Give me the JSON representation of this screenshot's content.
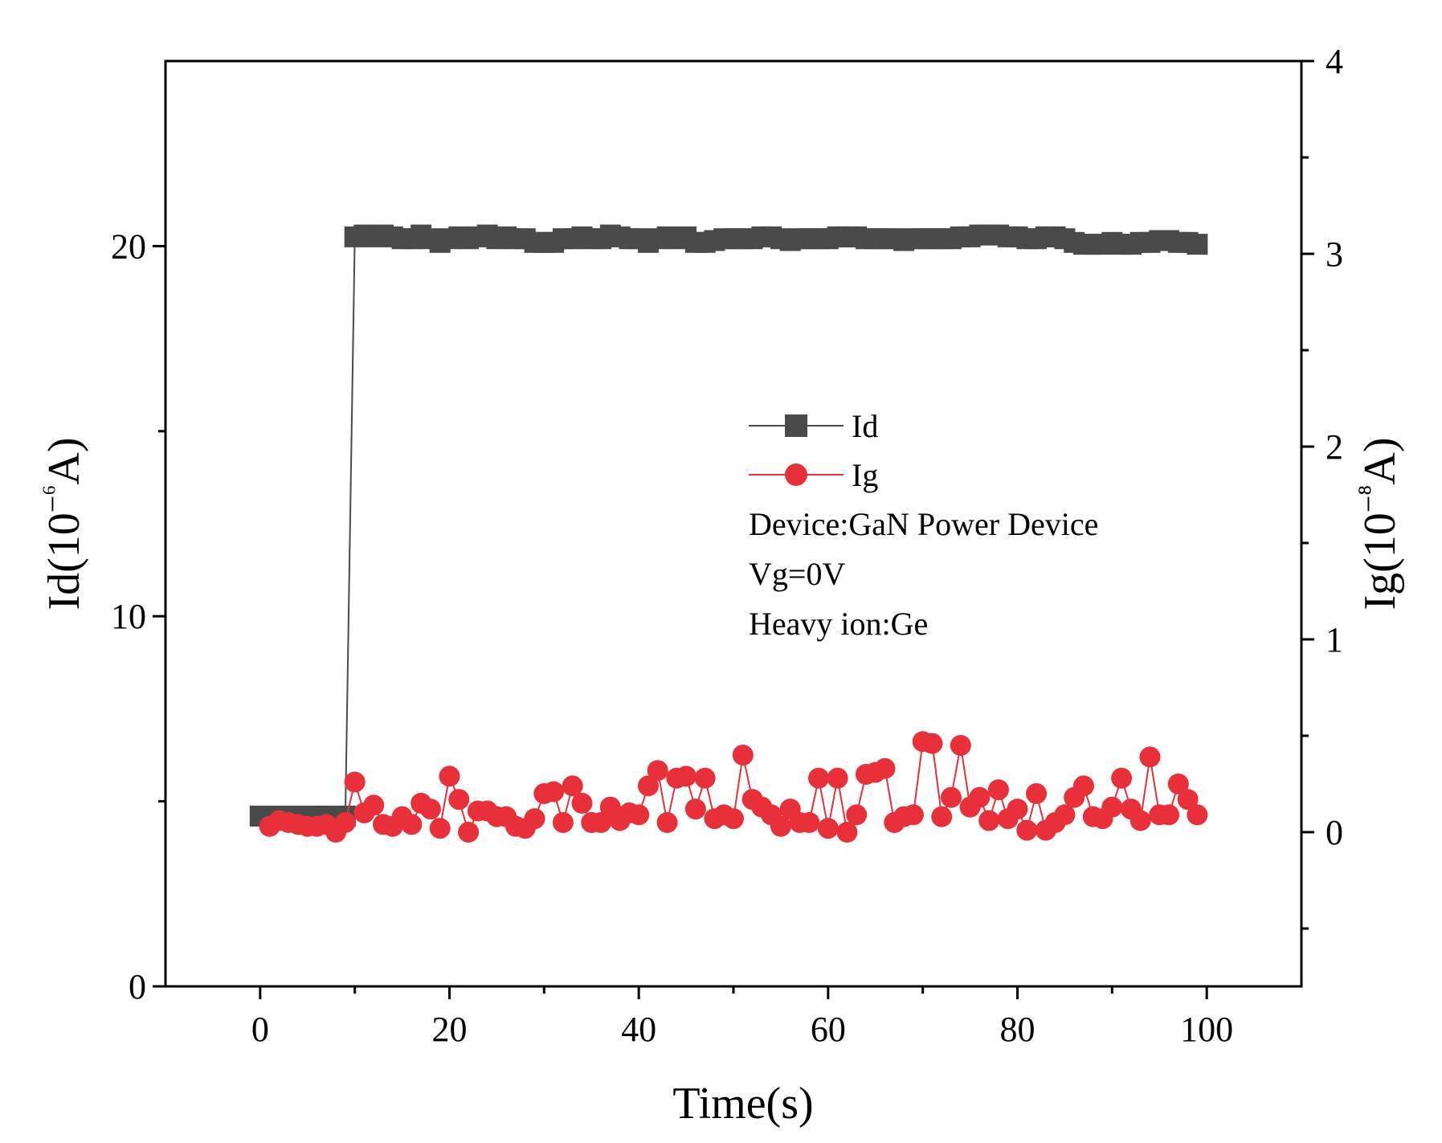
{
  "chart_data": {
    "type": "line",
    "title": "",
    "xlabel": "Time(s)",
    "ylabel_left": "Id(10⁻⁶A)",
    "ylabel_left_parts": {
      "base": "Id(10",
      "sup": "−⁶",
      "tail": "A)"
    },
    "ylabel_right": "Ig(10⁻⁸A)",
    "ylabel_right_parts": {
      "base": "Ig(10",
      "sup": "−⁸",
      "tail": "A)"
    },
    "xlim": [
      -10,
      110
    ],
    "ylim_left": [
      0,
      25
    ],
    "ylim_right": [
      -0.8,
      4
    ],
    "xticks": [
      0,
      20,
      40,
      60,
      80,
      100
    ],
    "yticks_left": [
      0,
      10,
      20
    ],
    "yticks_right": [
      0,
      1,
      2,
      3,
      4
    ],
    "grid": false,
    "legend_position": "center-right",
    "annotations": [
      "Device:GaN Power Device",
      "Vg=0V",
      "Heavy ion:Ge"
    ],
    "series": [
      {
        "name": "Id",
        "axis": "left",
        "color": "#4a4a4a",
        "marker": "square",
        "x": [
          0,
          1,
          2,
          3,
          4,
          5,
          6,
          7,
          8,
          9,
          10,
          11,
          12,
          13,
          14,
          15,
          16,
          17,
          18,
          19,
          20,
          21,
          22,
          23,
          24,
          25,
          26,
          27,
          28,
          29,
          30,
          31,
          32,
          33,
          34,
          35,
          36,
          37,
          38,
          39,
          40,
          41,
          42,
          43,
          44,
          45,
          46,
          47,
          48,
          49,
          50,
          51,
          52,
          53,
          54,
          55,
          56,
          57,
          58,
          59,
          60,
          61,
          62,
          63,
          64,
          65,
          66,
          67,
          68,
          69,
          70,
          71,
          72,
          73,
          74,
          75,
          76,
          77,
          78,
          79,
          80,
          81,
          82,
          83,
          84,
          85,
          86,
          87,
          88,
          89,
          90,
          91,
          92,
          93,
          94,
          95,
          96,
          97,
          98,
          99
        ],
        "values": [
          4.6,
          4.6,
          4.6,
          4.6,
          4.6,
          4.6,
          4.6,
          4.6,
          4.6,
          4.6,
          20.25,
          20.3,
          20.25,
          20.3,
          20.25,
          20.2,
          20.2,
          20.3,
          20.2,
          20.1,
          20.2,
          20.25,
          20.2,
          20.25,
          20.3,
          20.2,
          20.25,
          20.2,
          20.2,
          20.1,
          20.1,
          20.1,
          20.2,
          20.2,
          20.25,
          20.2,
          20.2,
          20.3,
          20.25,
          20.2,
          20.2,
          20.1,
          20.2,
          20.25,
          20.2,
          20.25,
          20.1,
          20.1,
          20.15,
          20.2,
          20.2,
          20.2,
          20.2,
          20.25,
          20.25,
          20.2,
          20.15,
          20.2,
          20.2,
          20.2,
          20.2,
          20.25,
          20.25,
          20.25,
          20.2,
          20.2,
          20.2,
          20.2,
          20.15,
          20.2,
          20.2,
          20.2,
          20.2,
          20.2,
          20.25,
          20.25,
          20.3,
          20.3,
          20.3,
          20.25,
          20.25,
          20.2,
          20.2,
          20.25,
          20.25,
          20.2,
          20.1,
          20.05,
          20.05,
          20.05,
          20.1,
          20.05,
          20.05,
          20.1,
          20.1,
          20.15,
          20.15,
          20.1,
          20.1,
          20.05
        ]
      },
      {
        "name": "Ig",
        "axis": "right",
        "color": "#e8303a",
        "marker": "circle",
        "x": [
          1,
          2,
          3,
          4,
          5,
          6,
          7,
          8,
          9,
          10,
          11,
          12,
          13,
          14,
          15,
          16,
          17,
          18,
          19,
          20,
          21,
          22,
          23,
          24,
          25,
          26,
          27,
          28,
          29,
          30,
          31,
          32,
          33,
          34,
          35,
          36,
          37,
          38,
          39,
          40,
          41,
          42,
          43,
          44,
          45,
          46,
          47,
          48,
          49,
          50,
          51,
          52,
          53,
          54,
          55,
          56,
          57,
          58,
          59,
          60,
          61,
          62,
          63,
          64,
          65,
          66,
          67,
          68,
          69,
          70,
          71,
          72,
          73,
          74,
          75,
          76,
          77,
          78,
          79,
          80,
          81,
          82,
          83,
          84,
          85,
          86,
          87,
          88,
          89,
          90,
          91,
          92,
          93,
          94,
          95,
          96,
          97,
          98,
          99
        ],
        "values": [
          0.03,
          0.06,
          0.05,
          0.04,
          0.03,
          0.03,
          0.04,
          0.0,
          0.05,
          0.26,
          0.1,
          0.14,
          0.04,
          0.03,
          0.08,
          0.04,
          0.15,
          0.12,
          0.02,
          0.29,
          0.17,
          0.0,
          0.11,
          0.11,
          0.08,
          0.08,
          0.03,
          0.02,
          0.07,
          0.2,
          0.21,
          0.05,
          0.24,
          0.15,
          0.05,
          0.05,
          0.13,
          0.06,
          0.1,
          0.09,
          0.24,
          0.32,
          0.05,
          0.28,
          0.29,
          0.12,
          0.28,
          0.07,
          0.09,
          0.07,
          0.4,
          0.17,
          0.13,
          0.09,
          0.03,
          0.12,
          0.05,
          0.05,
          0.28,
          0.02,
          0.28,
          0.0,
          0.09,
          0.3,
          0.31,
          0.33,
          0.05,
          0.08,
          0.09,
          0.47,
          0.46,
          0.08,
          0.18,
          0.45,
          0.13,
          0.18,
          0.06,
          0.22,
          0.07,
          0.12,
          0.01,
          0.2,
          0.01,
          0.05,
          0.09,
          0.18,
          0.24,
          0.08,
          0.07,
          0.13,
          0.28,
          0.12,
          0.06,
          0.39,
          0.09,
          0.09,
          0.25,
          0.17,
          0.09
        ]
      }
    ]
  }
}
